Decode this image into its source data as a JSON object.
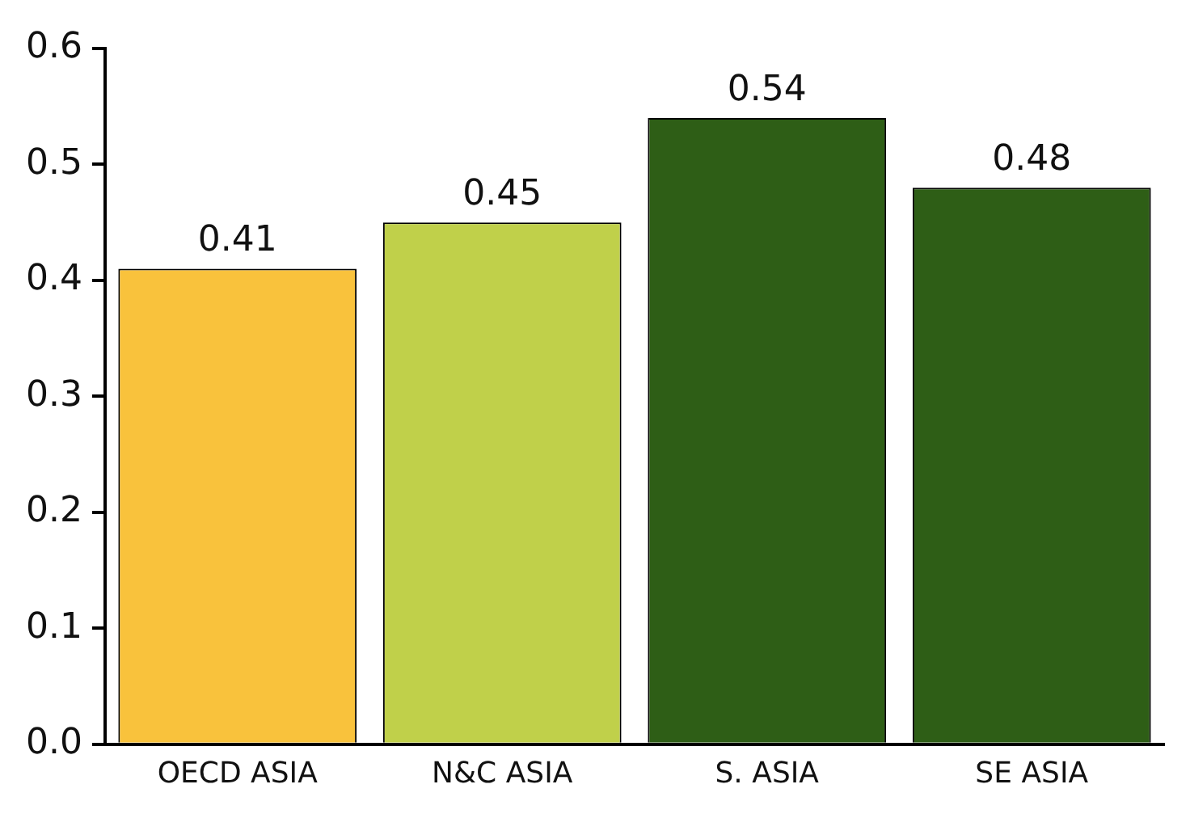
{
  "chart_data": {
    "type": "bar",
    "categories": [
      "OECD ASIA",
      "N&C ASIA",
      "S. ASIA",
      "SE ASIA"
    ],
    "values": [
      0.41,
      0.45,
      0.54,
      0.48
    ],
    "colors": [
      "#f9c23c",
      "#c0d04a",
      "#2e5e16",
      "#2e5e16"
    ],
    "ylim": [
      0,
      0.6
    ],
    "yticks": [
      {
        "value": 0,
        "label": "0.0"
      },
      {
        "value": 0.1,
        "label": "0.1"
      },
      {
        "value": 0.2,
        "label": "0.2"
      },
      {
        "value": 0.3,
        "label": "0.3"
      },
      {
        "value": 0.4,
        "label": "0.4"
      },
      {
        "value": 0.5,
        "label": "0.5"
      },
      {
        "value": 0.6,
        "label": "0.6"
      }
    ],
    "grid": false,
    "legend": false,
    "data_labels": true
  }
}
